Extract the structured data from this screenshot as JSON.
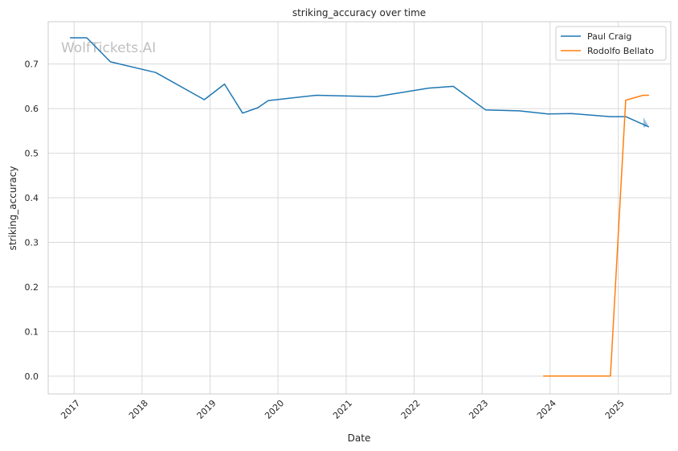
{
  "chart_data": {
    "type": "line",
    "title": "striking_accuracy over time",
    "xlabel": "Date",
    "ylabel": "striking_accuracy",
    "xlim": [
      "2016-08-15",
      "2025-10-10"
    ],
    "ylim": [
      -0.04,
      0.795
    ],
    "x_ticks": [
      "2017",
      "2018",
      "2019",
      "2020",
      "2021",
      "2022",
      "2023",
      "2024",
      "2025"
    ],
    "y_ticks": [
      "0.0",
      "0.1",
      "0.2",
      "0.3",
      "0.4",
      "0.5",
      "0.6",
      "0.7"
    ],
    "grid": true,
    "legend_position": "top-right",
    "watermark": "WolfTickets.AI",
    "series": [
      {
        "name": "Paul Craig",
        "color": "#1f77b4",
        "points": [
          [
            "2016-12-10",
            0.759
          ],
          [
            "2017-03-10",
            0.759
          ],
          [
            "2017-07-15",
            0.705
          ],
          [
            "2018-03-15",
            0.681
          ],
          [
            "2018-12-01",
            0.62
          ],
          [
            "2019-03-20",
            0.655
          ],
          [
            "2019-06-25",
            0.59
          ],
          [
            "2019-09-15",
            0.602
          ],
          [
            "2019-11-10",
            0.618
          ],
          [
            "2020-07-25",
            0.63
          ],
          [
            "2021-06-10",
            0.627
          ],
          [
            "2022-03-20",
            0.646
          ],
          [
            "2022-07-30",
            0.65
          ],
          [
            "2023-01-20",
            0.597
          ],
          [
            "2023-07-20",
            0.595
          ],
          [
            "2023-12-20",
            0.588
          ],
          [
            "2024-04-25",
            0.589
          ],
          [
            "2024-11-20",
            0.582
          ],
          [
            "2025-02-10",
            0.582
          ],
          [
            "2025-06-15",
            0.559
          ]
        ]
      },
      {
        "name": "Rodolfo Bellato",
        "color": "#ff7f0e",
        "points": [
          [
            "2023-11-25",
            0.0
          ],
          [
            "2024-11-20",
            0.0
          ],
          [
            "2025-02-10",
            0.619
          ],
          [
            "2025-05-15",
            0.63
          ],
          [
            "2025-06-15",
            0.63
          ]
        ]
      }
    ]
  }
}
